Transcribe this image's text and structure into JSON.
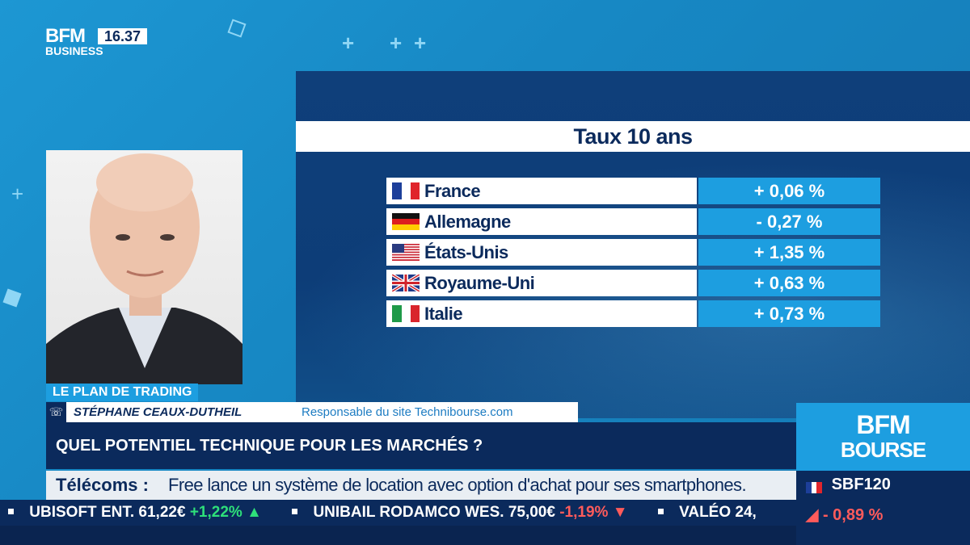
{
  "branding": {
    "logo_top": "BFM",
    "logo_bottom": "BUSINESS",
    "time": "16.37",
    "brand_line1": "BFM",
    "brand_line2": "BOURSE"
  },
  "table": {
    "title": "Taux 10 ans",
    "rows": [
      {
        "country": "France",
        "value": "+ 0,06 %",
        "flag": "france-flag"
      },
      {
        "country": "Allemagne",
        "value": "- 0,27 %",
        "flag": "germany-flag"
      },
      {
        "country": "États-Unis",
        "value": "+ 1,35 %",
        "flag": "usa-flag"
      },
      {
        "country": "Royaume-Uni",
        "value": "+ 0,63 %",
        "flag": "uk-flag"
      },
      {
        "country": "Italie",
        "value": "+ 0,73 %",
        "flag": "italy-flag"
      }
    ]
  },
  "lower_third": {
    "show": "LE PLAN DE TRADING",
    "guest_name": "STÉPHANE CEAUX-DUTHEIL",
    "guest_role": "Responsable du site Technibourse.com",
    "headline": "QUEL POTENTIEL TECHNIQUE POUR LES MARCHÉS ?"
  },
  "news": {
    "category": "Télécoms :",
    "text": "Free lance un système de location avec option d'achat pour ses smartphones."
  },
  "ticker": [
    {
      "name": "UBISOFT ENT.",
      "price": "61,22€",
      "change": "+1,22%",
      "dir": "up"
    },
    {
      "name": "UNIBAIL RODAMCO WES.",
      "price": "75,00€",
      "change": "-1,19%",
      "dir": "down"
    },
    {
      "name": "VALÉO",
      "price": "24,",
      "change": "",
      "dir": "none"
    }
  ],
  "index": {
    "name": "SBF120",
    "change": "- 0,89 %"
  },
  "colors": {
    "navy": "#0b2a5c",
    "accent_blue": "#1d9ee0",
    "up": "#2ee07a",
    "down": "#ff5b5b"
  }
}
